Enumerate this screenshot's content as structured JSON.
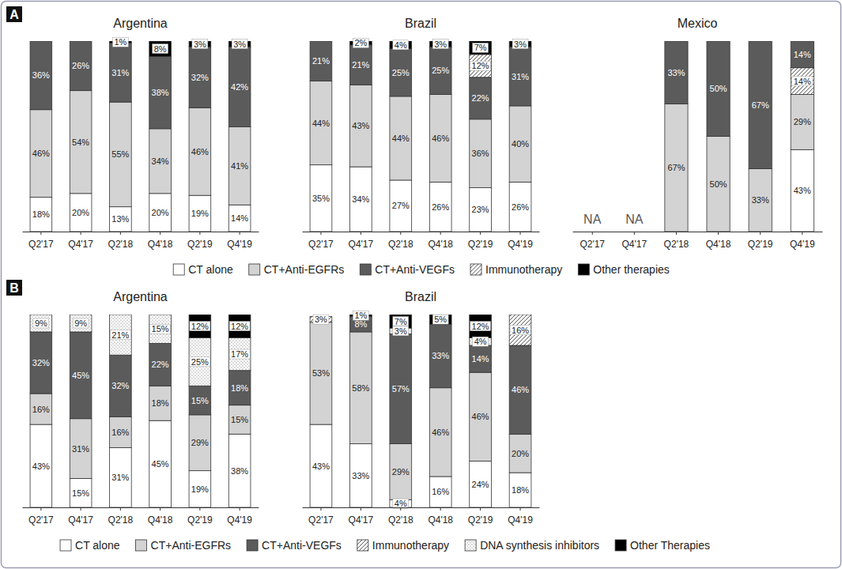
{
  "chart_data": [
    {
      "type": "bar",
      "panel": "A",
      "title": "Argentina",
      "stacked": true,
      "data_labels": true,
      "tick_labels": "x",
      "categories": [
        "Q2'17",
        "Q4'17",
        "Q2'18",
        "Q4'18",
        "Q2'19",
        "Q4'19"
      ],
      "ylim": [
        0,
        100
      ],
      "series": [
        {
          "name": "CT alone",
          "color": "#ffffff",
          "values": [
            18,
            20,
            13,
            20,
            19,
            14
          ],
          "value_labels": [
            "18%",
            "20%",
            "13%",
            "20%",
            "19%",
            "14%"
          ]
        },
        {
          "name": "CT+Anti-EGFRs",
          "color": "#d3d3d3",
          "values": [
            46,
            54,
            55,
            34,
            46,
            41
          ],
          "value_labels": [
            "46%",
            "54%",
            "55%",
            "34%",
            "46%",
            "41%"
          ]
        },
        {
          "name": "CT+Anti-VEGFs",
          "color": "#5b5b5b",
          "values": [
            36,
            26,
            31,
            38,
            32,
            42
          ],
          "value_labels": [
            "36%",
            "26%",
            "31%",
            "38%",
            "32%",
            "42%"
          ]
        },
        {
          "name": "Immunotherapy",
          "color": "#ffffff",
          "marker": "hatch",
          "values": [
            0,
            0,
            0,
            0,
            0,
            0
          ],
          "value_labels": [
            null,
            null,
            null,
            null,
            null,
            null
          ]
        },
        {
          "name": "Other therapies",
          "color": "#000000",
          "values": [
            0,
            0,
            1,
            8,
            3,
            3
          ],
          "value_labels": [
            null,
            null,
            "1%",
            "8%",
            "3%",
            "3%"
          ]
        }
      ]
    },
    {
      "type": "bar",
      "panel": "A",
      "title": "Brazil",
      "stacked": true,
      "data_labels": true,
      "tick_labels": "x",
      "categories": [
        "Q2'17",
        "Q4'17",
        "Q2'18",
        "Q4'18",
        "Q2'19",
        "Q4'19"
      ],
      "ylim": [
        0,
        100
      ],
      "series": [
        {
          "name": "CT alone",
          "color": "#ffffff",
          "values": [
            35,
            34,
            27,
            26,
            23,
            26
          ],
          "value_labels": [
            "35%",
            "34%",
            "27%",
            "26%",
            "23%",
            "26%"
          ]
        },
        {
          "name": "CT+Anti-EGFRs",
          "color": "#d3d3d3",
          "values": [
            44,
            43,
            44,
            46,
            36,
            40
          ],
          "value_labels": [
            "44%",
            "43%",
            "44%",
            "46%",
            "36%",
            "40%"
          ]
        },
        {
          "name": "CT+Anti-VEGFs",
          "color": "#5b5b5b",
          "values": [
            21,
            21,
            25,
            25,
            22,
            31
          ],
          "value_labels": [
            "21%",
            "21%",
            "25%",
            "25%",
            "22%",
            "31%"
          ]
        },
        {
          "name": "Immunotherapy",
          "color": "#ffffff",
          "marker": "hatch",
          "values": [
            0,
            0,
            0,
            0,
            12,
            0
          ],
          "value_labels": [
            null,
            null,
            null,
            null,
            "12%",
            null
          ]
        },
        {
          "name": "Other therapies",
          "color": "#000000",
          "values": [
            0,
            2,
            4,
            3,
            7,
            3
          ],
          "value_labels": [
            null,
            "2%",
            "4%",
            "3%",
            "7%",
            "3%"
          ]
        }
      ]
    },
    {
      "type": "bar",
      "panel": "A",
      "title": "Mexico",
      "stacked": true,
      "data_labels": true,
      "tick_labels": "x",
      "categories": [
        "Q2'17",
        "Q4'17",
        "Q2'18",
        "Q4'18",
        "Q2'19",
        "Q4'19"
      ],
      "ylim": [
        0,
        100
      ],
      "annotations": [
        {
          "x": "Q2'17",
          "text": "NA"
        },
        {
          "x": "Q4'17",
          "text": "NA"
        }
      ],
      "series": [
        {
          "name": "CT alone",
          "color": "#ffffff",
          "values": [
            null,
            null,
            0,
            0,
            0,
            43
          ],
          "value_labels": [
            null,
            null,
            null,
            null,
            null,
            "43%"
          ]
        },
        {
          "name": "CT+Anti-EGFRs",
          "color": "#d3d3d3",
          "values": [
            null,
            null,
            67,
            50,
            33,
            29
          ],
          "value_labels": [
            null,
            null,
            "67%",
            "50%",
            "33%",
            "29%"
          ]
        },
        {
          "name": "Immunotherapy",
          "color": "#ffffff",
          "marker": "hatch",
          "values": [
            null,
            null,
            0,
            0,
            0,
            14
          ],
          "value_labels": [
            null,
            null,
            null,
            null,
            null,
            "14%"
          ]
        },
        {
          "name": "CT+Anti-VEGFs",
          "color": "#5b5b5b",
          "values": [
            null,
            null,
            33,
            50,
            67,
            14
          ],
          "value_labels": [
            null,
            null,
            "33%",
            "50%",
            "67%",
            "14%"
          ]
        }
      ]
    },
    {
      "type": "bar",
      "panel": "B",
      "title": "Argentina",
      "stacked": true,
      "data_labels": true,
      "tick_labels": "x",
      "categories": [
        "Q2'17",
        "Q4'17",
        "Q2'18",
        "Q4'18",
        "Q2'19",
        "Q4'19"
      ],
      "ylim": [
        0,
        100
      ],
      "series": [
        {
          "name": "CT alone",
          "color": "#ffffff",
          "values": [
            43,
            15,
            31,
            45,
            19,
            38
          ],
          "value_labels": [
            "43%",
            "15%",
            "31%",
            "45%",
            "19%",
            "38%"
          ]
        },
        {
          "name": "CT+Anti-EGFRs",
          "color": "#d3d3d3",
          "values": [
            16,
            31,
            16,
            18,
            29,
            15
          ],
          "value_labels": [
            "16%",
            "31%",
            "16%",
            "18%",
            "29%",
            "15%"
          ]
        },
        {
          "name": "CT+Anti-VEGFs",
          "color": "#5b5b5b",
          "values": [
            32,
            45,
            32,
            22,
            15,
            18
          ],
          "value_labels": [
            "32%",
            "45%",
            "32%",
            "22%",
            "15%",
            "18%"
          ]
        },
        {
          "name": "Immunotherapy",
          "color": "#ffffff",
          "marker": "hatch",
          "values": [
            0,
            0,
            0,
            0,
            0,
            0
          ],
          "value_labels": [
            null,
            null,
            null,
            null,
            null,
            null
          ]
        },
        {
          "name": "DNA synthesis inhibitors",
          "color": "#ffffff",
          "marker": "dots",
          "values": [
            9,
            9,
            21,
            15,
            25,
            17
          ],
          "value_labels": [
            "9%",
            "9%",
            "21%",
            "15%",
            "25%",
            "17%"
          ]
        },
        {
          "name": "Other Therapies",
          "color": "#000000",
          "values": [
            0,
            0,
            0,
            0,
            12,
            12
          ],
          "value_labels": [
            null,
            null,
            null,
            null,
            "12%",
            "12%"
          ]
        }
      ]
    },
    {
      "type": "bar",
      "panel": "B",
      "title": "Brazil",
      "stacked": true,
      "data_labels": true,
      "tick_labels": "x",
      "categories": [
        "Q2'17",
        "Q4'17",
        "Q2'18",
        "Q4'18",
        "Q2'19",
        "Q4'19"
      ],
      "ylim": [
        0,
        100
      ],
      "series": [
        {
          "name": "CT alone",
          "color": "#ffffff",
          "values": [
            43,
            33,
            4,
            16,
            24,
            18
          ],
          "value_labels": [
            "43%",
            "33%",
            "4%",
            "16%",
            "24%",
            "18%"
          ]
        },
        {
          "name": "CT+Anti-EGFRs",
          "color": "#d3d3d3",
          "values": [
            53,
            58,
            29,
            46,
            46,
            20
          ],
          "value_labels": [
            "53%",
            "58%",
            "29%",
            "46%",
            "46%",
            "20%"
          ]
        },
        {
          "name": "CT+Anti-VEGFs",
          "color": "#5b5b5b",
          "values": [
            0,
            8,
            57,
            33,
            14,
            46
          ],
          "value_labels": [
            null,
            "8%",
            "57%",
            "33%",
            "14%",
            "46%"
          ]
        },
        {
          "name": "Immunotherapy",
          "color": "#ffffff",
          "marker": "hatch",
          "values": [
            3,
            0,
            0,
            0,
            0,
            16
          ],
          "value_labels": [
            "3%",
            null,
            null,
            null,
            null,
            "16%"
          ]
        },
        {
          "name": "DNA synthesis inhibitors",
          "color": "#ffffff",
          "marker": "dots",
          "values": [
            0,
            0,
            3,
            0,
            4,
            0
          ],
          "value_labels": [
            null,
            null,
            "3%",
            null,
            "4%",
            null
          ]
        },
        {
          "name": "Other Therapies",
          "color": "#000000",
          "values": [
            0,
            1,
            7,
            5,
            12,
            0
          ],
          "value_labels": [
            null,
            "1%",
            "7%",
            "5%",
            "12%",
            null
          ]
        }
      ]
    }
  ]
}
